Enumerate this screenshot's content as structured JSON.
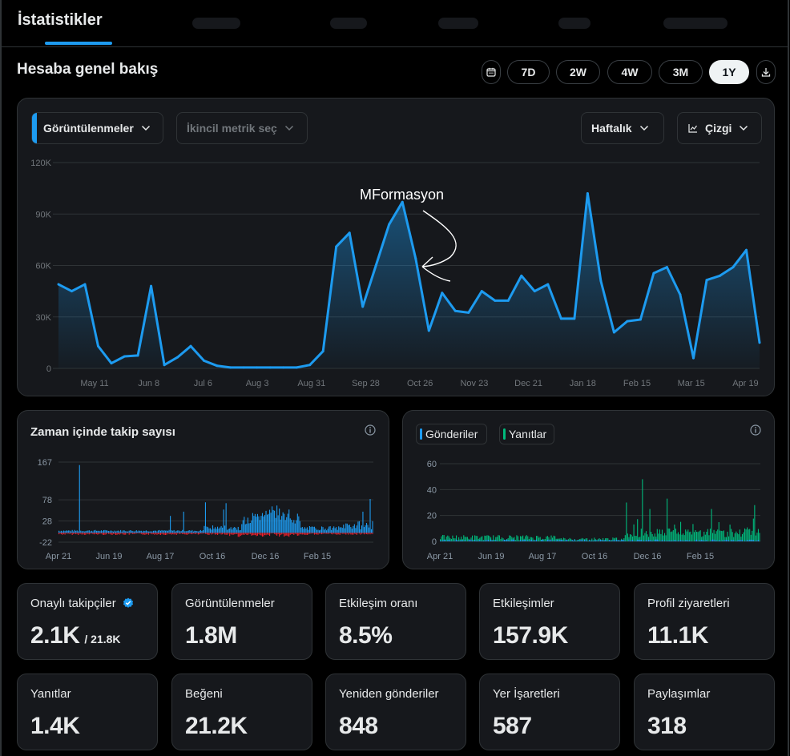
{
  "header": {
    "active_tab": "İstatistikler"
  },
  "overview": {
    "title": "Hesaba genel bakış",
    "calendar_icon": "calendar-icon",
    "ranges": [
      "7D",
      "2W",
      "4W",
      "3M",
      "1Y"
    ],
    "selected_range": "1Y",
    "download_icon": "download-icon"
  },
  "main_chart": {
    "primary_metric": "Görüntülenmeler",
    "secondary_metric_placeholder": "İkincil metrik seç",
    "interval": "Haftalık",
    "chart_style": "Çizgi",
    "annotation": "MFormasyon",
    "accent_color": "#1d9bf0"
  },
  "chart_data": [
    {
      "type": "area",
      "series": [
        {
          "values": [
            49000,
            45000,
            49000,
            13000,
            3000,
            7000,
            7500,
            48000,
            2000,
            6500,
            13000,
            4500,
            1500,
            500,
            500,
            500,
            500,
            500,
            500,
            2000,
            10000,
            71000,
            79000,
            36000,
            60000,
            84000,
            97000,
            64000,
            22000,
            44000,
            33500,
            32500,
            45000,
            39500,
            39500,
            54000,
            45000,
            49000,
            29000,
            29000,
            102000,
            51000,
            21000,
            27500,
            28500,
            55500,
            59000,
            43000,
            6000,
            51500,
            54000,
            59000,
            69000,
            15000
          ]
        }
      ],
      "x_tick_labels": [
        "May 11",
        "Jun 8",
        "Jul 6",
        "Aug 3",
        "Aug 31",
        "Sep 28",
        "Oct 26",
        "Nov 23",
        "Dec 21",
        "Jan 18",
        "Feb 15",
        "Mar 15",
        "Apr 19"
      ],
      "y_tick_labels": [
        "0",
        "30K",
        "60K",
        "90K",
        "120K"
      ],
      "ylim": [
        0,
        120000
      ],
      "grid": true
    },
    {
      "type": "bar",
      "title": "Zaman içinde takip sayısı",
      "x_tick_labels": [
        "Apr 21",
        "Jun 19",
        "Aug 17",
        "Oct 16",
        "Dec 16",
        "Feb 15"
      ],
      "y_tick_labels": [
        "167",
        "78",
        "28",
        "-22"
      ],
      "ylim": [
        -22,
        167
      ],
      "series_colors": [
        "#1d9bf0",
        "#f4212e"
      ]
    },
    {
      "type": "bar",
      "legend": [
        "Gönderiler",
        "Yanıtlar"
      ],
      "series_colors": [
        "#1d9bf0",
        "#00ba7c"
      ],
      "x_tick_labels": [
        "Apr 21",
        "Jun 19",
        "Aug 17",
        "Oct 16",
        "Dec 16",
        "Feb 15"
      ],
      "y_tick_labels": [
        "60",
        "40",
        "20",
        "0"
      ],
      "ylim": [
        0,
        60
      ]
    }
  ],
  "stats": [
    {
      "label": "Onaylı takipçiler",
      "value": "2.1K",
      "sub": "/ 21.8K",
      "icon": "verified-badge-icon"
    },
    {
      "label": "Görüntülenmeler",
      "value": "1.8M"
    },
    {
      "label": "Etkileşim oranı",
      "value": "8.5%"
    },
    {
      "label": "Etkileşimler",
      "value": "157.9K"
    },
    {
      "label": "Profil ziyaretleri",
      "value": "11.1K"
    },
    {
      "label": "Yanıtlar",
      "value": "1.4K"
    },
    {
      "label": "Beğeni",
      "value": "21.2K"
    },
    {
      "label": "Yeniden gönderiler",
      "value": "848"
    },
    {
      "label": "Yer İşaretleri",
      "value": "587"
    },
    {
      "label": "Paylaşımlar",
      "value": "318"
    }
  ]
}
